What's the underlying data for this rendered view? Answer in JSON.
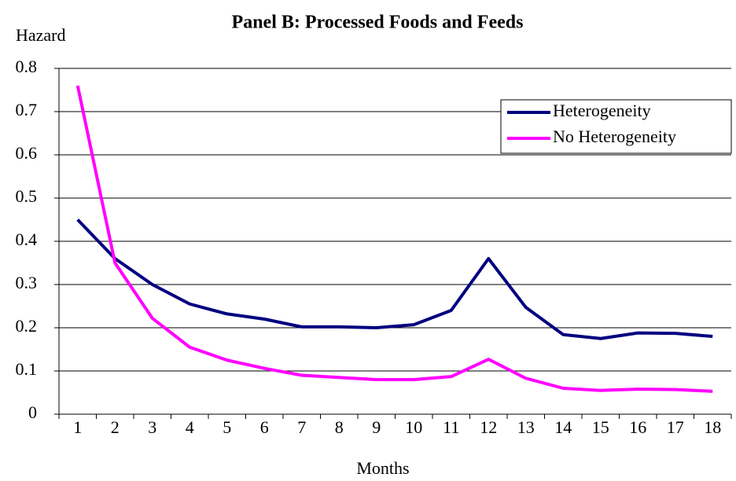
{
  "chart_data": {
    "type": "line",
    "title": "Panel B: Processed Foods and Feeds",
    "y_label": "Hazard",
    "x_label": "Months",
    "categories": [
      "1",
      "2",
      "3",
      "4",
      "5",
      "6",
      "7",
      "8",
      "9",
      "10",
      "11",
      "12",
      "13",
      "14",
      "15",
      "16",
      "17",
      "18"
    ],
    "series": [
      {
        "name": "Heterogeneity",
        "color": "#000080",
        "values": [
          0.45,
          0.36,
          0.3,
          0.255,
          0.232,
          0.22,
          0.202,
          0.202,
          0.2,
          0.207,
          0.24,
          0.36,
          0.247,
          0.184,
          0.175,
          0.188,
          0.187,
          0.18
        ]
      },
      {
        "name": "No Heterogeneity",
        "color": "#ff00ff",
        "values": [
          0.76,
          0.35,
          0.222,
          0.155,
          0.125,
          0.106,
          0.09,
          0.085,
          0.08,
          0.08,
          0.087,
          0.127,
          0.083,
          0.06,
          0.055,
          0.058,
          0.057,
          0.053
        ]
      }
    ],
    "ylim": [
      0,
      0.8
    ],
    "yticks": [
      0,
      0.1,
      0.2,
      0.3,
      0.4,
      0.5,
      0.6,
      0.7,
      0.8
    ],
    "grid": true,
    "legend": "top-right"
  }
}
